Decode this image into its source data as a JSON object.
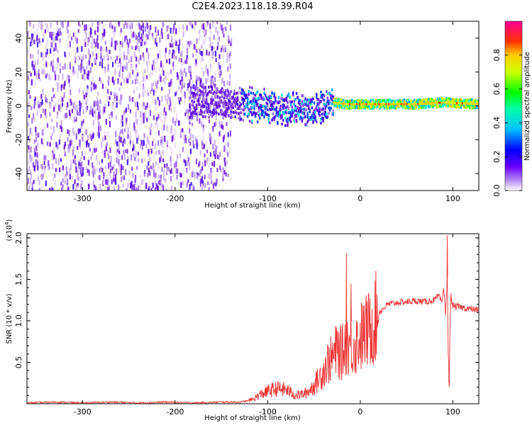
{
  "title": "C2E4.2023.118.18.39.R04",
  "chart_data": [
    {
      "type": "heatmap",
      "title": "",
      "xlabel": "Height of straight line (km)",
      "ylabel": "Frequency (Hz)",
      "xlim": [
        -360,
        128
      ],
      "ylim": [
        -50,
        50
      ],
      "xticks": [
        -300,
        -200,
        -100,
        0,
        100
      ],
      "yticks": [
        -40,
        -20,
        0,
        20,
        40
      ],
      "colorbar": {
        "label": "Normalized spectral amplitude",
        "range": [
          0.0,
          1.0
        ],
        "ticks": [
          "0.0",
          "0.2",
          "0.4",
          "0.6",
          "0.8"
        ],
        "colormap": "rainbow (white → violet → blue → cyan → green → yellow → red → magenta)"
      },
      "features": [
        {
          "region": "x -360 to -140",
          "description": "diffuse scattered low-amplitude noise across all frequencies (purple)"
        },
        {
          "region": "x -185 to 128",
          "description": "narrow band near 0 Hz; amplitude increasing toward positive heights"
        },
        {
          "region": "x -30 to 128",
          "description": "bright red/yellow line at ~1-2 Hz"
        }
      ],
      "band_centerline": {
        "x": [
          -185,
          -150,
          -120,
          -100,
          -80,
          -60,
          -45,
          -30,
          -15,
          0,
          20,
          60,
          90,
          128
        ],
        "y": [
          3,
          2,
          1,
          -1,
          -2,
          -3,
          -1,
          2,
          1,
          1,
          1,
          1,
          2,
          1
        ]
      }
    },
    {
      "type": "line",
      "title": "",
      "xlabel": "Height of straight line (km)",
      "ylabel": "SNR (10 * v/v)",
      "y_multiplier": "(x10",
      "y_multiplier_exp": "4",
      "xlim": [
        -360,
        128
      ],
      "ylim": [
        0,
        2.05
      ],
      "xticks": [
        -300,
        -200,
        -100,
        0,
        100
      ],
      "yticks": [
        0.5,
        1.0,
        1.5,
        2.0
      ],
      "ytick_labels": [
        "0.5",
        "1.0",
        "1.5",
        "2.0"
      ],
      "color": "#ee3333",
      "series": [
        {
          "x": [
            -360,
            -330,
            -300,
            -270,
            -240,
            -210,
            -180,
            -150,
            -130,
            -120,
            -115,
            -110,
            -100,
            -90,
            -80,
            -70,
            -60,
            -55,
            -50,
            -45,
            -40,
            -35,
            -30,
            -25,
            -20,
            -15,
            -10,
            -5,
            0,
            5,
            10,
            15,
            20,
            25,
            30,
            40,
            50,
            60,
            70,
            80,
            85,
            88,
            90,
            92,
            94,
            95,
            96,
            97,
            98,
            100,
            105,
            110,
            115,
            120,
            128
          ],
          "y": [
            0.01,
            0.02,
            0.01,
            0.02,
            0.01,
            0.02,
            0.01,
            0.02,
            0.02,
            0.04,
            0.06,
            0.1,
            0.15,
            0.18,
            0.17,
            0.1,
            0.12,
            0.16,
            0.22,
            0.3,
            0.4,
            0.5,
            0.55,
            0.65,
            0.6,
            0.75,
            0.7,
            0.72,
            0.8,
            0.85,
            0.9,
            1.0,
            1.1,
            1.15,
            1.2,
            1.22,
            1.23,
            1.24,
            1.23,
            1.25,
            1.3,
            1.2,
            1.4,
            1.1,
            1.5,
            0.6,
            0.25,
            1.0,
            1.3,
            1.18,
            1.17,
            1.16,
            1.15,
            1.14,
            1.13
          ]
        }
      ],
      "spikes": [
        {
          "x": -15,
          "y": 1.82
        },
        {
          "x": -10,
          "y": 1.45
        },
        {
          "x": 94,
          "y": 2.03
        },
        {
          "x": 96,
          "y": 0.2
        }
      ]
    }
  ]
}
